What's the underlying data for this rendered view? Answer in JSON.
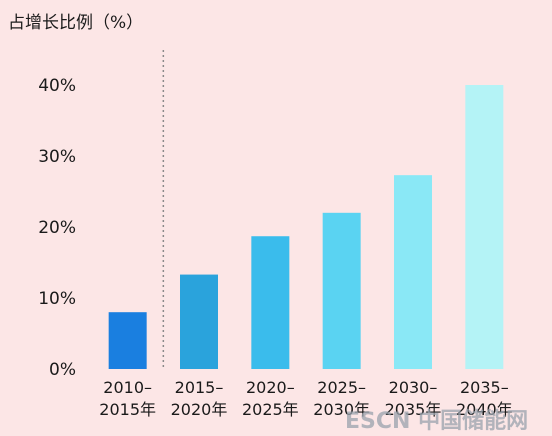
{
  "chart_data": {
    "type": "bar",
    "ylabel": "占增长比例（%）",
    "categories": [
      [
        "2010–",
        "2015年"
      ],
      [
        "2015–",
        "2020年"
      ],
      [
        "2020–",
        "2025年"
      ],
      [
        "2025–",
        "2030年"
      ],
      [
        "2030–",
        "2035年"
      ],
      [
        "2035–",
        "2040年"
      ]
    ],
    "values": [
      8,
      13.3,
      18.7,
      22,
      27.3,
      40
    ],
    "ylim": [
      0,
      45
    ],
    "yticks": [
      0,
      10,
      20,
      30,
      40
    ],
    "ytick_labels": [
      "0%",
      "10%",
      "20%",
      "30%",
      "40%"
    ],
    "bar_colors": [
      "#1a7fe0",
      "#2aa3dc",
      "#3abcec",
      "#5ad3f2",
      "#8ae8f6",
      "#b4f3f6"
    ],
    "dotted_separator_after_category": 0,
    "grid": false
  },
  "watermark": "ESCN 中国储能网"
}
